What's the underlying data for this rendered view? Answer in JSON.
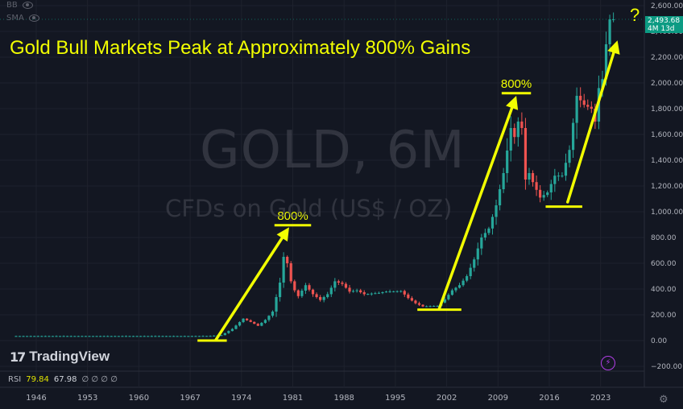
{
  "indicators": {
    "bb_label": "BB",
    "sma_label": "SMA"
  },
  "chart_title": "Gold Bull Markets Peak at Approximately 800% Gains",
  "watermark": {
    "symbol": "GOLD, 6M",
    "description": "CFDs on Gold (US$ / OZ)"
  },
  "brand": {
    "name": "TradingView",
    "mark": "17"
  },
  "rsi_legend": {
    "label": "RSI",
    "value1": "79.84",
    "value2": "67.98",
    "empty": "∅ ∅ ∅ ∅"
  },
  "price_tag": {
    "price": "2,493.68",
    "countdown": "4M 13d",
    "color": "#0c9b83"
  },
  "annotations": {
    "question": "?",
    "rally1_label": "800%",
    "rally2_label": "800%"
  },
  "colors": {
    "up": "#26a69a",
    "down": "#ef5350",
    "annotation": "#f2ff00",
    "background": "#131722"
  },
  "chart_data": {
    "type": "candlestick",
    "title": "Gold Bull Markets Peak at Approximately 800% Gains",
    "y_axis": {
      "min": -200,
      "max": 2600,
      "ticks": [
        2600,
        2400,
        2200,
        2000,
        1800,
        1600,
        1400,
        1200,
        1000,
        800,
        600,
        400,
        200,
        0,
        -200
      ],
      "tick_labels": [
        "2,600.00",
        "2,400.00",
        "2,200.00",
        "2,000.00",
        "1,800.00",
        "1,600.00",
        "1,400.00",
        "1,200.00",
        "1,000.00",
        "800.00",
        "600.00",
        "400.00",
        "200.00",
        "0.00",
        "−200.00"
      ]
    },
    "x_axis": {
      "min": 1943,
      "max": 2027,
      "ticks": [
        1946,
        1953,
        1960,
        1967,
        1974,
        1981,
        1988,
        1995,
        2002,
        2009,
        2016,
        2023
      ]
    },
    "grid": true,
    "anchors": [
      [
        1943.0,
        35
      ],
      [
        1968.0,
        35
      ],
      [
        1970.0,
        36
      ],
      [
        1971.5,
        42
      ],
      [
        1973.0,
        90
      ],
      [
        1974.5,
        170
      ],
      [
        1975.5,
        145
      ],
      [
        1976.5,
        115
      ],
      [
        1977.5,
        160
      ],
      [
        1978.5,
        225
      ],
      [
        1979.5,
        450
      ],
      [
        1980.0,
        650
      ],
      [
        1980.5,
        600
      ],
      [
        1981.0,
        460
      ],
      [
        1981.5,
        390
      ],
      [
        1982.0,
        345
      ],
      [
        1983.0,
        430
      ],
      [
        1984.0,
        360
      ],
      [
        1985.0,
        315
      ],
      [
        1986.0,
        360
      ],
      [
        1987.0,
        460
      ],
      [
        1988.0,
        440
      ],
      [
        1989.0,
        380
      ],
      [
        1990.0,
        390
      ],
      [
        1991.0,
        360
      ],
      [
        1993.0,
        370
      ],
      [
        1994.0,
        380
      ],
      [
        1996.0,
        385
      ],
      [
        1997.0,
        330
      ],
      [
        1998.0,
        290
      ],
      [
        1999.0,
        265
      ],
      [
        2001.0,
        270
      ],
      [
        2002.0,
        320
      ],
      [
        2003.0,
        390
      ],
      [
        2004.0,
        430
      ],
      [
        2005.0,
        500
      ],
      [
        2006.0,
        630
      ],
      [
        2007.0,
        800
      ],
      [
        2008.0,
        870
      ],
      [
        2009.0,
        1050
      ],
      [
        2010.0,
        1300
      ],
      [
        2011.0,
        1650
      ],
      [
        2011.5,
        1580
      ],
      [
        2012.0,
        1700
      ],
      [
        2012.5,
        1650
      ],
      [
        2013.0,
        1250
      ],
      [
        2013.5,
        1300
      ],
      [
        2014.0,
        1230
      ],
      [
        2015.0,
        1110
      ],
      [
        2016.0,
        1150
      ],
      [
        2017.0,
        1280
      ],
      [
        2018.0,
        1280
      ],
      [
        2019.0,
        1480
      ],
      [
        2020.0,
        1900
      ],
      [
        2021.0,
        1830
      ],
      [
        2022.0,
        1800
      ],
      [
        2022.5,
        1700
      ],
      [
        2023.0,
        1960
      ],
      [
        2023.5,
        2030
      ],
      [
        2024.0,
        2300
      ],
      [
        2024.5,
        2493.68
      ]
    ],
    "last_price": 2493.68,
    "bases": [
      {
        "x0": 1968,
        "x1": 1972,
        "y": 0
      },
      {
        "x0": 1998,
        "x1": 2004,
        "y": 240
      },
      {
        "x0": 2015.5,
        "x1": 2020.5,
        "y": 1040
      }
    ],
    "peaks": [
      {
        "x0": 1978.5,
        "x1": 1983.5,
        "y": 895,
        "label": "800%"
      },
      {
        "x0": 2009.5,
        "x1": 2013.5,
        "y": 1920,
        "label": "800%"
      }
    ],
    "arrows": [
      {
        "from": [
          1970.5,
          5
        ],
        "to": [
          1980.5,
          880
        ]
      },
      {
        "from": [
          2001,
          250
        ],
        "to": [
          2011.5,
          1900
        ]
      },
      {
        "from": [
          2018.5,
          1075
        ],
        "to": [
          2025.3,
          2330
        ]
      }
    ]
  }
}
